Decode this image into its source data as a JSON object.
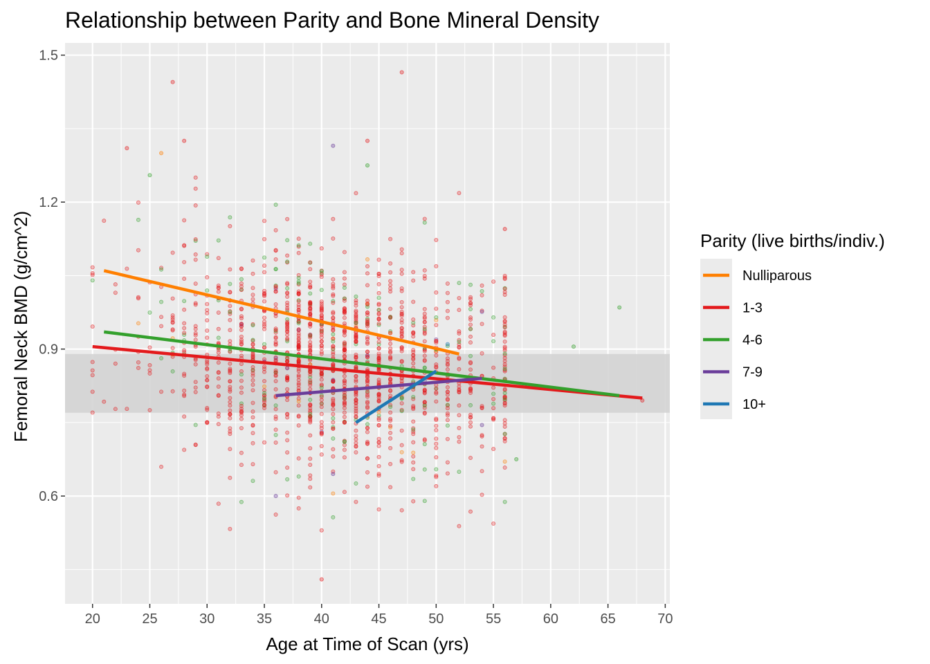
{
  "chart_data": {
    "type": "scatter",
    "title": "Relationship between Parity and Bone Mineral Density",
    "xlabel": "Age at Time of Scan (yrs)",
    "ylabel": "Femoral Neck BMD (g/cm^2)",
    "xlim": [
      17.6,
      70.4
    ],
    "ylim": [
      0.38,
      1.525
    ],
    "x_ticks": [
      "20",
      "25",
      "30",
      "35",
      "40",
      "45",
      "50",
      "55",
      "60",
      "65",
      "70"
    ],
    "y_ticks": [
      "0.6",
      "0.9",
      "1.2",
      "1.5"
    ],
    "grid": true,
    "legend": {
      "title": "Parity (live births/indiv.)",
      "position": "right"
    },
    "reference_band": {
      "y_min": 0.77,
      "y_max": 0.89,
      "color": "#d4d4d4"
    },
    "series": [
      {
        "name": "Nulliparous",
        "color": "#FF7F00",
        "fit": {
          "x": [
            21,
            52
          ],
          "y": [
            1.06,
            0.89
          ]
        }
      },
      {
        "name": "1-3",
        "color": "#E31A1C",
        "fit": {
          "x": [
            20,
            68
          ],
          "y": [
            0.905,
            0.8
          ]
        }
      },
      {
        "name": "4-6",
        "color": "#33A02C",
        "fit": {
          "x": [
            21,
            66
          ],
          "y": [
            0.935,
            0.805
          ]
        }
      },
      {
        "name": "7-9",
        "color": "#6A3D9A",
        "fit": {
          "x": [
            36,
            54
          ],
          "y": [
            0.805,
            0.84
          ]
        }
      },
      {
        "name": "10+",
        "color": "#1F78B4",
        "fit": {
          "x": [
            43,
            50
          ],
          "y": [
            0.75,
            0.855
          ]
        }
      }
    ],
    "highlighted_points": [
      {
        "series": "Nulliparous",
        "x": 26,
        "y": 1.3
      },
      {
        "series": "1-3",
        "x": 27,
        "y": 1.445
      },
      {
        "series": "1-3",
        "x": 47,
        "y": 1.465
      },
      {
        "series": "1-3",
        "x": 23,
        "y": 1.31
      },
      {
        "series": "1-3",
        "x": 28,
        "y": 1.325
      },
      {
        "series": "1-3",
        "x": 44,
        "y": 1.325
      },
      {
        "series": "1-3",
        "x": 40,
        "y": 0.43
      },
      {
        "series": "1-3",
        "x": 68,
        "y": 0.795
      },
      {
        "series": "1-3",
        "x": 56,
        "y": 1.145
      },
      {
        "series": "4-6",
        "x": 66,
        "y": 0.985
      },
      {
        "series": "4-6",
        "x": 62,
        "y": 0.905
      },
      {
        "series": "4-6",
        "x": 57,
        "y": 0.675
      },
      {
        "series": "4-6",
        "x": 44,
        "y": 1.275
      },
      {
        "series": "4-6",
        "x": 25,
        "y": 1.255
      },
      {
        "series": "7-9",
        "x": 41,
        "y": 1.315
      },
      {
        "series": "7-9",
        "x": 36,
        "y": 0.6
      },
      {
        "series": "7-9",
        "x": 41,
        "y": 0.645
      },
      {
        "series": "7-9",
        "x": 54,
        "y": 0.745
      },
      {
        "series": "10+",
        "x": 51,
        "y": 0.91
      }
    ]
  }
}
